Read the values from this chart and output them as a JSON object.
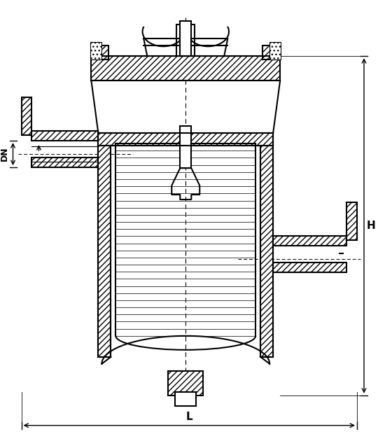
{
  "bg_color": "#ffffff",
  "line_color": "#000000",
  "hatch_color": "#000000",
  "hatch_pattern": "////",
  "filter_lines_color": "#555555",
  "dim_color": "#000000",
  "title": "",
  "label_DN": "DN",
  "label_H": "H",
  "label_L": "L",
  "fig_width": 5.4,
  "fig_height": 6.4,
  "dpi": 100
}
